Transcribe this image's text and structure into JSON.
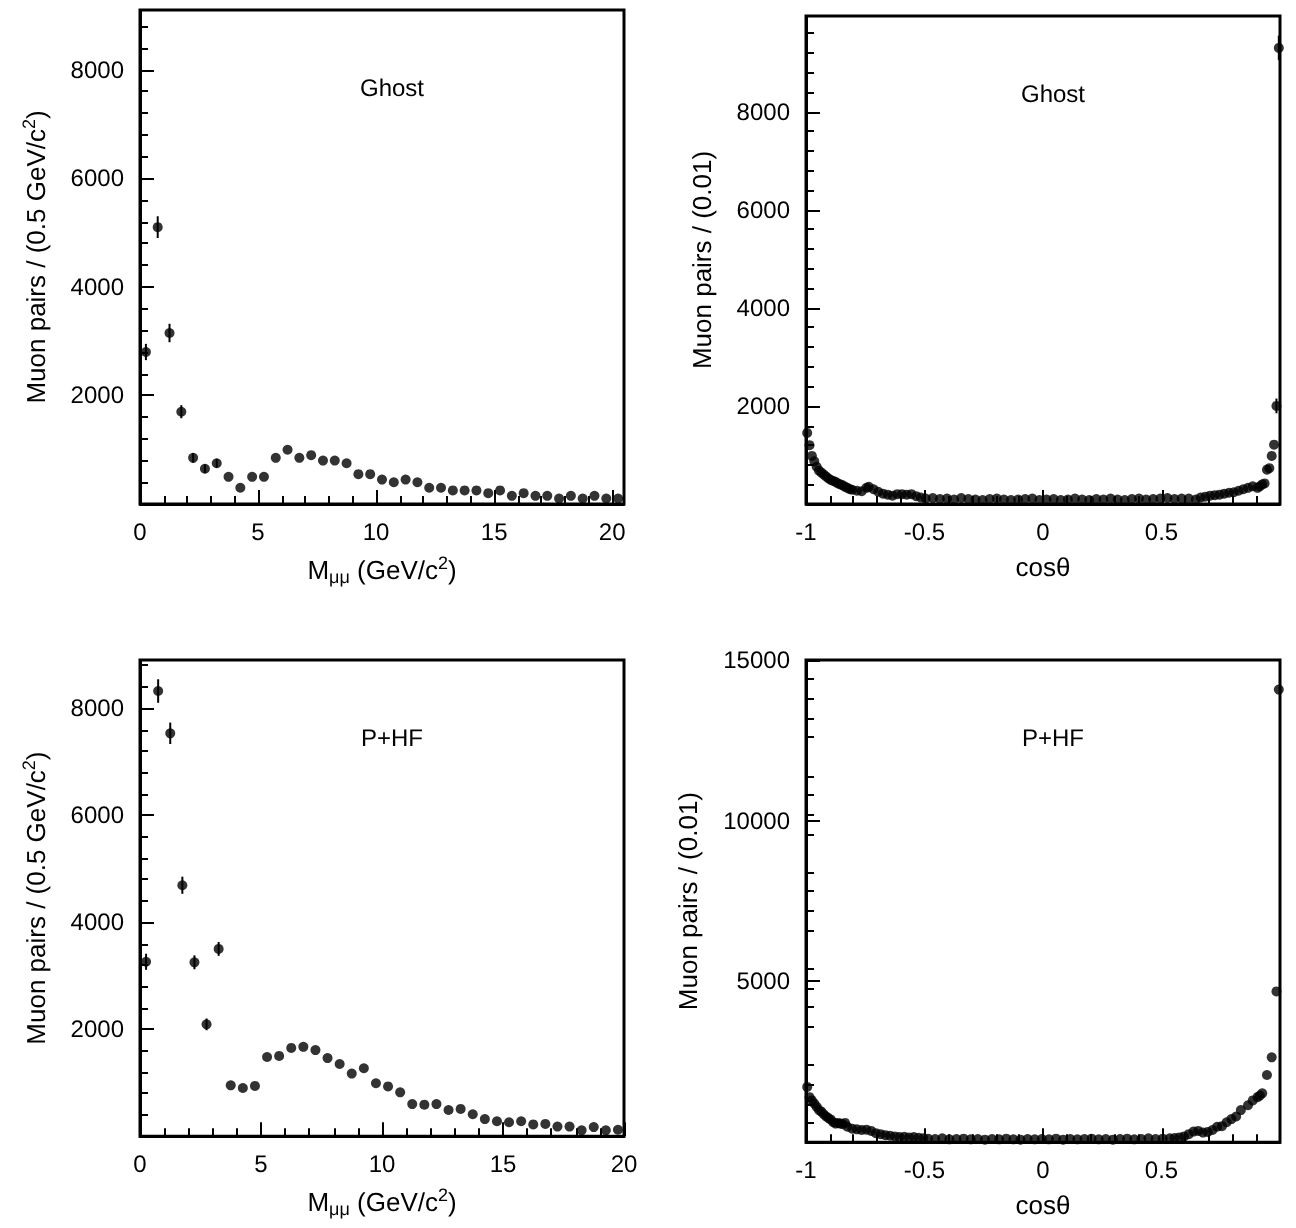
{
  "chart_data": [
    {
      "type": "scatter",
      "title": "Ghost",
      "xlabel": "M$_{μμ}$ (GeV/c$^{2}$)",
      "ylabel": "Muon pairs / (0.5 GeV/c$^{2}$)",
      "xlim": [
        0,
        20.5
      ],
      "ylim": [
        0,
        9100
      ],
      "xticks": [
        0,
        5,
        10,
        15,
        20
      ],
      "yticks": [
        2000,
        4000,
        6000,
        8000
      ],
      "grid": false,
      "marker": "circle",
      "series": [
        {
          "color": "#000000",
          "x": [
            0.25,
            0.75,
            1.25,
            1.75,
            2.25,
            2.75,
            3.25
          ],
          "values": [
            2800,
            5100,
            3150,
            1700,
            850,
            650,
            750
          ],
          "errors": [
            150,
            200,
            170,
            120,
            90,
            80,
            80
          ]
        },
        {
          "color": "#000000",
          "x": [
            3.75,
            4.25,
            4.75,
            5.25,
            5.75,
            6.25,
            6.75,
            7.25,
            7.75,
            8.25,
            8.75,
            9.25,
            9.75,
            10.25,
            10.75,
            11.25,
            11.75,
            12.25,
            12.75,
            13.25,
            13.75,
            14.25,
            14.75,
            15.25,
            15.75,
            16.25,
            16.75,
            17.25,
            17.75,
            18.25,
            18.75,
            19.25,
            19.75,
            20.25
          ],
          "values": [
            500,
            300,
            500,
            500,
            850,
            1000,
            850,
            900,
            800,
            800,
            750,
            550,
            550,
            450,
            400,
            450,
            400,
            300,
            300,
            250,
            250,
            250,
            200,
            250,
            150,
            200,
            150,
            150,
            100,
            150,
            100,
            150,
            100,
            100
          ]
        }
      ]
    },
    {
      "type": "scatter",
      "title": "Ghost",
      "xlabel": "cosθ",
      "ylabel": "Muon pairs / (0.01)",
      "xlim": [
        -1,
        1
      ],
      "ylim": [
        0,
        9950
      ],
      "xticks": [
        -1,
        -0.5,
        0,
        0.5
      ],
      "yticks": [
        2000,
        4000,
        6000,
        8000
      ],
      "grid": false,
      "marker": "circle",
      "series": [
        {
          "color": "#000000",
          "x": [
            -0.995,
            -0.985,
            -0.975,
            -0.965,
            -0.955,
            -0.945,
            -0.935,
            -0.925,
            -0.915,
            -0.905,
            -0.895,
            -0.885,
            -0.875,
            -0.865,
            -0.855,
            -0.845,
            -0.835,
            -0.825,
            -0.815,
            -0.805,
            -0.785,
            -0.765,
            -0.745,
            -0.735,
            -0.715,
            -0.695,
            -0.675,
            -0.655,
            -0.635,
            -0.615,
            -0.595,
            -0.575,
            -0.555,
            -0.535,
            -0.515,
            -0.495,
            -0.465,
            -0.435,
            -0.405,
            -0.375,
            -0.345,
            -0.315,
            -0.285,
            -0.255,
            -0.225,
            -0.195,
            -0.165,
            -0.135,
            -0.105,
            -0.075,
            -0.045,
            -0.015,
            0.015,
            0.045,
            0.075,
            0.105,
            0.135,
            0.165,
            0.195,
            0.225,
            0.255,
            0.285,
            0.315,
            0.345,
            0.375,
            0.405,
            0.435,
            0.465,
            0.495,
            0.525,
            0.555,
            0.585,
            0.615,
            0.645,
            0.665,
            0.685,
            0.705,
            0.725,
            0.745,
            0.765,
            0.785,
            0.805,
            0.825,
            0.845,
            0.865,
            0.885,
            0.905,
            0.915,
            0.925,
            0.935,
            0.945,
            0.955,
            0.965,
            0.975
          ],
          "values": [
            1450,
            1200,
            980,
            870,
            760,
            680,
            640,
            600,
            560,
            520,
            490,
            470,
            450,
            420,
            400,
            380,
            350,
            330,
            300,
            290,
            270,
            260,
            330,
            350,
            300,
            250,
            210,
            190,
            170,
            200,
            200,
            190,
            200,
            160,
            130,
            110,
            120,
            100,
            110,
            90,
            120,
            100,
            90,
            80,
            100,
            110,
            90,
            80,
            90,
            100,
            110,
            80,
            90,
            100,
            80,
            90,
            110,
            90,
            80,
            100,
            90,
            110,
            90,
            80,
            100,
            110,
            90,
            100,
            110,
            120,
            100,
            110,
            110,
            90,
            130,
            150,
            170,
            180,
            190,
            210,
            230,
            240,
            270,
            300,
            330,
            360,
            330,
            360,
            400,
            420,
            700,
            730,
            980,
            1210
          ]
        },
        {
          "color": "#000000",
          "x": [
            0.985,
            0.995
          ],
          "values": [
            2000,
            9300
          ],
          "errors": [
            150,
            250
          ]
        }
      ]
    },
    {
      "type": "scatter",
      "title": "P+HF",
      "xlabel": "M$_{μμ}$ (GeV/c$^{2}$)",
      "ylabel": "Muon pairs / (0.5 GeV/c$^{2}$)",
      "xlim": [
        0,
        20
      ],
      "ylim": [
        0,
        8900
      ],
      "xticks": [
        0,
        5,
        10,
        15,
        20
      ],
      "yticks": [
        2000,
        4000,
        6000,
        8000
      ],
      "grid": false,
      "marker": "circle",
      "series": [
        {
          "color": "#000000",
          "x": [
            0.25,
            0.75,
            1.25,
            1.75,
            2.25,
            2.75,
            3.25
          ],
          "values": [
            3260,
            8320,
            7530,
            4690,
            3250,
            2090,
            3500
          ],
          "errors": [
            150,
            220,
            200,
            160,
            130,
            110,
            130
          ]
        },
        {
          "color": "#000000",
          "x": [
            3.75,
            4.25,
            4.75,
            5.25,
            5.75,
            6.25,
            6.75,
            7.25,
            7.75,
            8.25,
            8.75,
            9.25,
            9.75,
            10.25,
            10.75,
            11.25,
            11.75,
            12.25,
            12.75,
            13.25,
            13.75,
            14.25,
            14.75,
            15.25,
            15.75,
            16.25,
            16.75,
            17.25,
            17.75,
            18.25,
            18.75,
            19.25,
            19.75
          ],
          "values": [
            950,
            900,
            940,
            1480,
            1500,
            1650,
            1670,
            1610,
            1460,
            1350,
            1170,
            1270,
            990,
            930,
            820,
            600,
            590,
            600,
            490,
            510,
            410,
            320,
            280,
            260,
            280,
            220,
            230,
            180,
            180,
            110,
            170,
            110,
            120
          ]
        }
      ]
    },
    {
      "type": "scatter",
      "title": "P+HF",
      "xlabel": "cosθ",
      "ylabel": "Muon pairs / (0.01)",
      "xlim": [
        -1,
        1
      ],
      "ylim": [
        0,
        15000
      ],
      "xticks": [
        -1,
        -0.5,
        0,
        0.5
      ],
      "yticks": [
        5000,
        10000,
        15000
      ],
      "grid": false,
      "marker": "circle",
      "series": [
        {
          "color": "#000000",
          "x": [
            -0.995,
            -0.985,
            -0.975,
            -0.965,
            -0.955,
            -0.945,
            -0.935,
            -0.925,
            -0.915,
            -0.905,
            -0.895,
            -0.885,
            -0.875,
            -0.865,
            -0.855,
            -0.845,
            -0.835,
            -0.825,
            -0.805,
            -0.785,
            -0.765,
            -0.745,
            -0.725,
            -0.705,
            -0.685,
            -0.665,
            -0.645,
            -0.625,
            -0.605,
            -0.585,
            -0.565,
            -0.545,
            -0.525,
            -0.505,
            -0.485,
            -0.455,
            -0.425,
            -0.395,
            -0.365,
            -0.335,
            -0.305,
            -0.275,
            -0.245,
            -0.215,
            -0.185,
            -0.155,
            -0.125,
            -0.095,
            -0.065,
            -0.035,
            -0.005,
            0.025,
            0.055,
            0.085,
            0.115,
            0.145,
            0.175,
            0.205,
            0.235,
            0.265,
            0.295,
            0.325,
            0.355,
            0.385,
            0.415,
            0.445,
            0.475,
            0.505,
            0.535,
            0.555,
            0.575,
            0.595,
            0.615,
            0.635,
            0.655,
            0.675,
            0.695,
            0.715,
            0.735,
            0.755,
            0.775,
            0.795,
            0.815,
            0.835,
            0.865,
            0.885,
            0.905,
            0.915,
            0.925,
            0.945,
            0.965,
            0.985,
            0.995
          ],
          "values": [
            1720,
            1400,
            1300,
            1200,
            1100,
            1000,
            950,
            870,
            800,
            750,
            700,
            620,
            580,
            600,
            580,
            560,
            600,
            480,
            420,
            400,
            380,
            390,
            350,
            280,
            250,
            220,
            200,
            180,
            160,
            170,
            150,
            160,
            140,
            120,
            110,
            100,
            120,
            90,
            100,
            110,
            90,
            100,
            80,
            100,
            90,
            110,
            90,
            80,
            100,
            90,
            100,
            90,
            110,
            80,
            100,
            90,
            100,
            110,
            90,
            100,
            80,
            100,
            110,
            90,
            100,
            120,
            100,
            110,
            120,
            130,
            150,
            180,
            250,
            330,
            350,
            300,
            320,
            380,
            480,
            500,
            620,
            720,
            800,
            1000,
            1150,
            1300,
            1400,
            1450,
            1520,
            2090,
            2640,
            4690,
            14080
          ]
        }
      ]
    }
  ]
}
